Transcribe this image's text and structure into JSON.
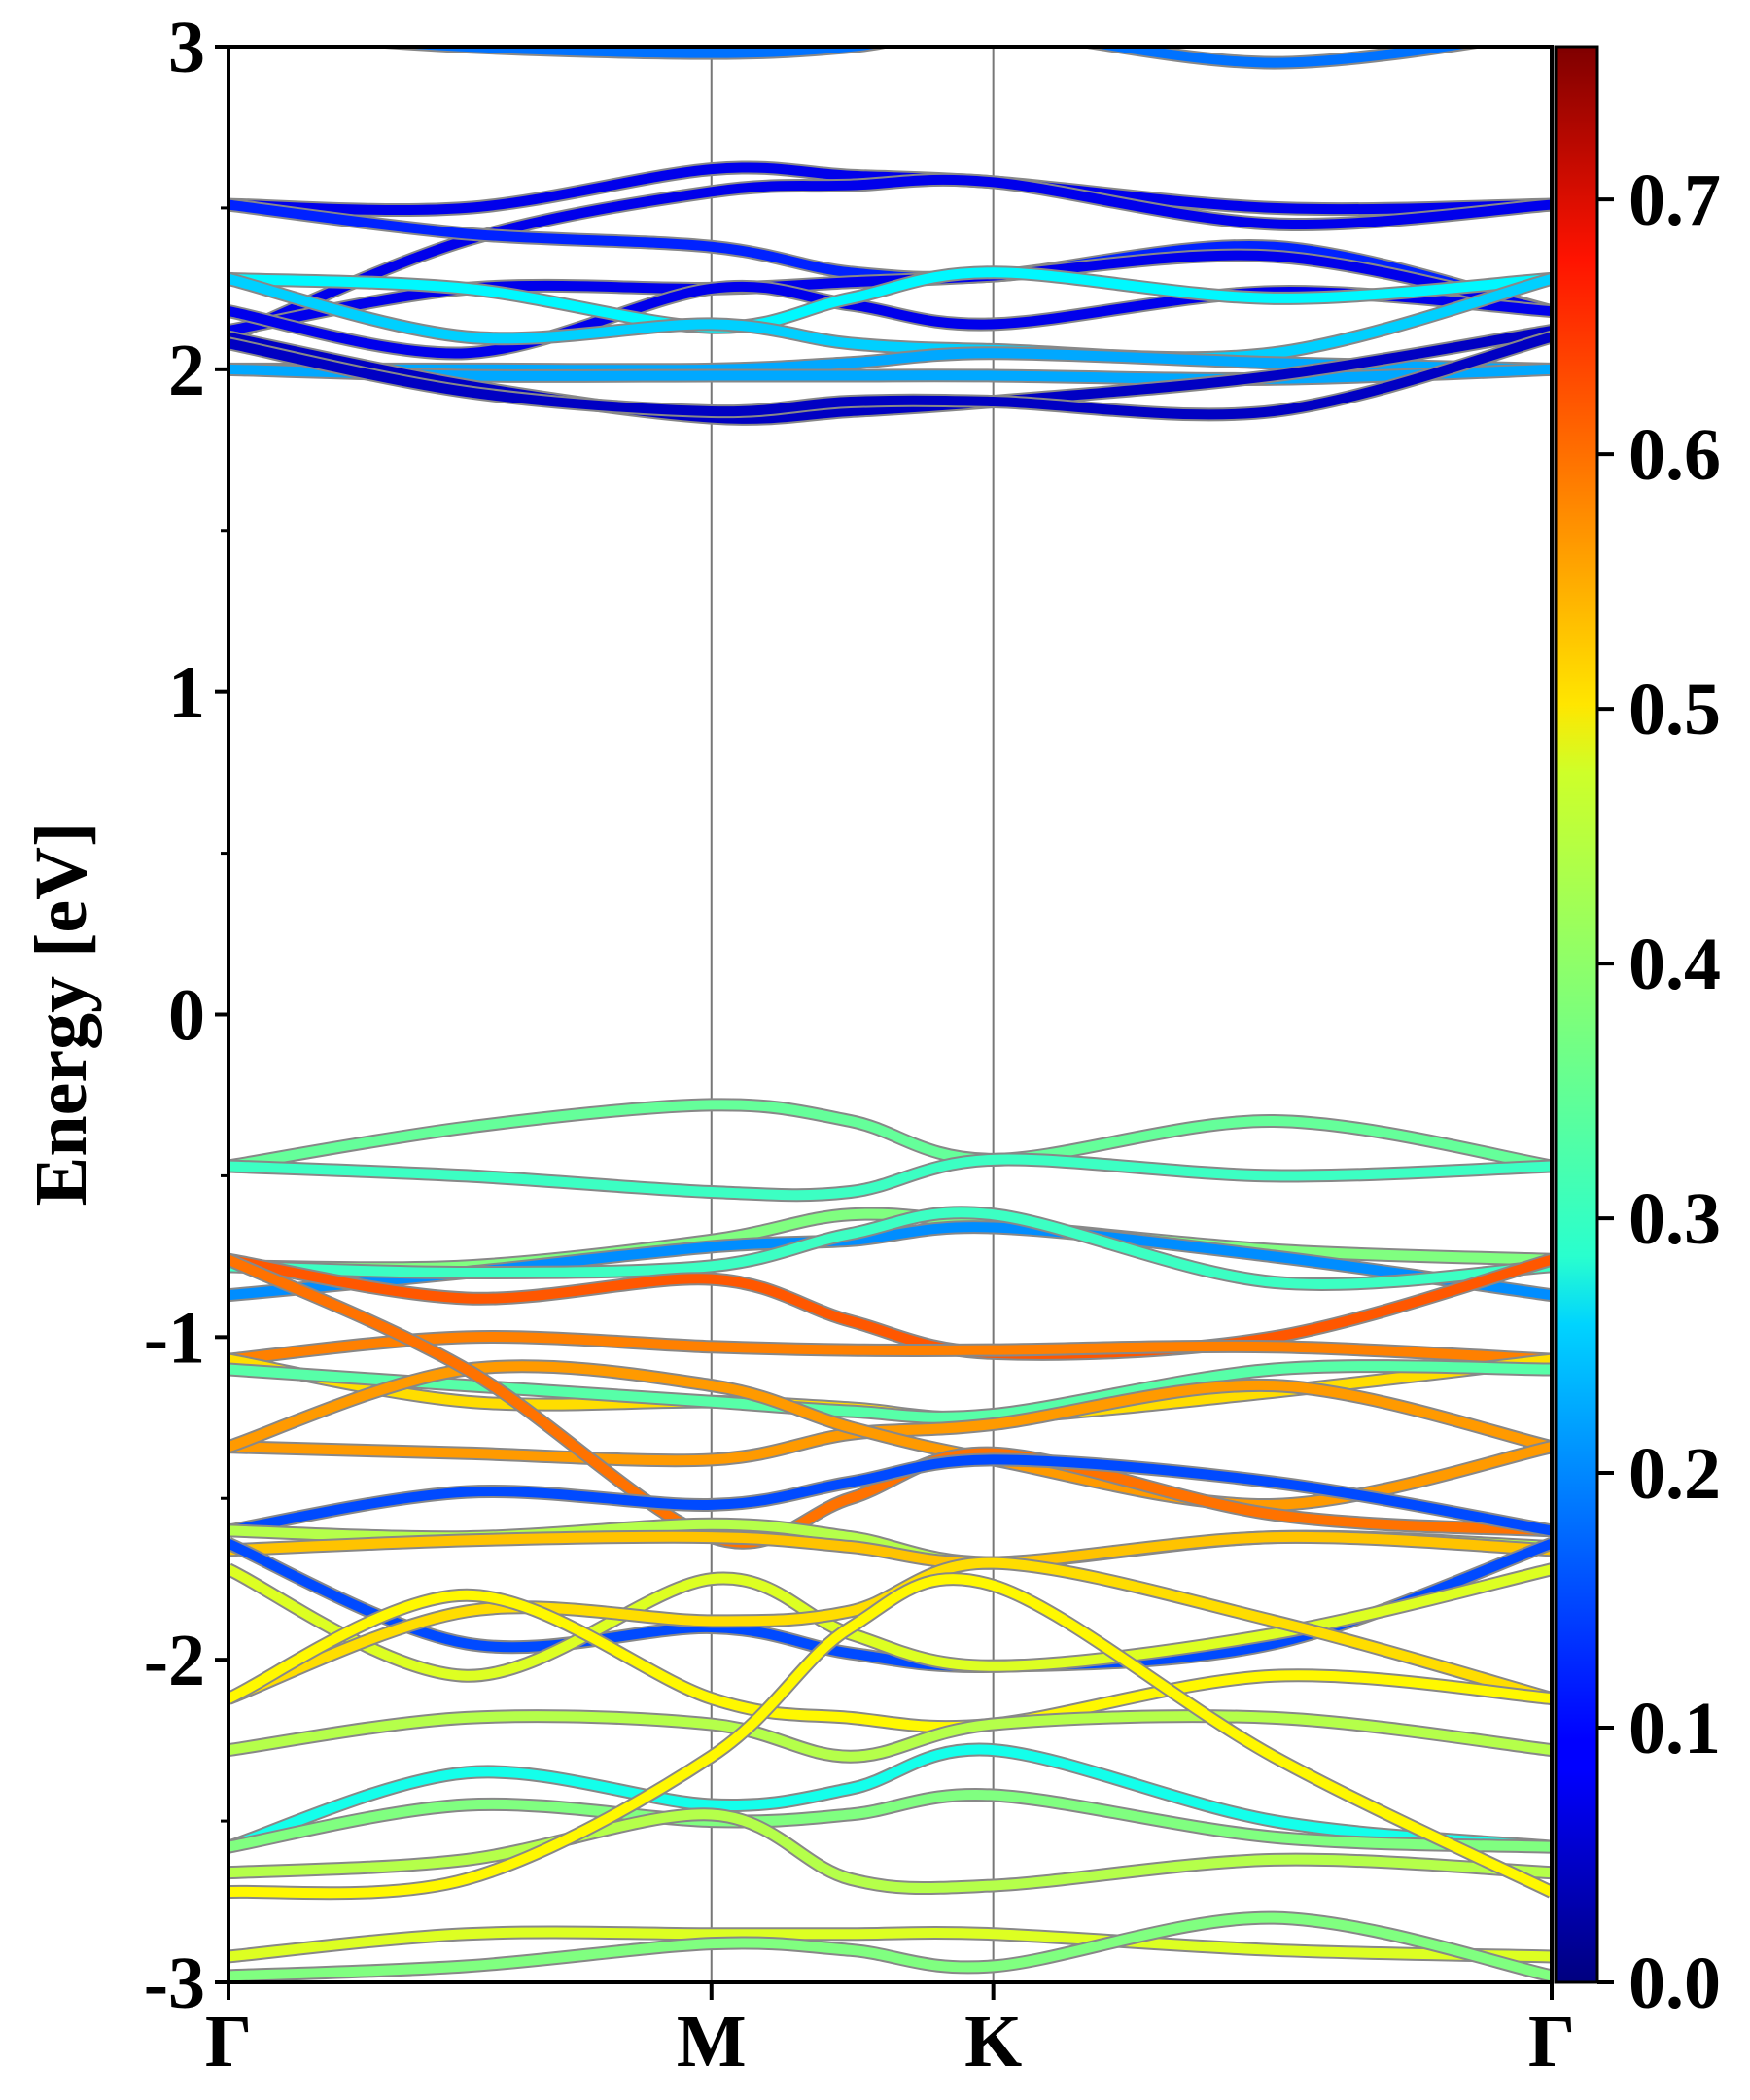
{
  "chart_data": {
    "type": "line",
    "title": "",
    "xlabel": "",
    "ylabel": "Energy [eV]",
    "ylim": [
      -3,
      3
    ],
    "yticks": [
      3,
      2,
      1,
      0,
      -1,
      -2,
      -3
    ],
    "ytick_labels": [
      "3",
      "2",
      "1",
      "0",
      "-1",
      "-2",
      "-3"
    ],
    "high_symmetry_points": [
      {
        "label": "Γ",
        "k": 0
      },
      {
        "label": "M",
        "k": 0.365
      },
      {
        "label": "K",
        "k": 0.578
      },
      {
        "label": "Γ",
        "k": 1
      }
    ],
    "k_samples": [
      0,
      0.18,
      0.365,
      0.47,
      0.578,
      0.79,
      1
    ],
    "colorbar": {
      "colormap": "jet",
      "range": [
        0,
        0.76
      ],
      "ticks": [
        0.0,
        0.1,
        0.2,
        0.3,
        0.4,
        0.5,
        0.6,
        0.7
      ],
      "tick_labels": [
        "0.0",
        "0.1",
        "0.2",
        "0.3",
        "0.4",
        "0.5",
        "0.6",
        "0.7"
      ]
    },
    "bands": [
      {
        "E": [
          3.05,
          3.0,
          2.98,
          3.0,
          3.05,
          2.95,
          3.05
        ],
        "w": 0.18
      },
      {
        "E": [
          2.51,
          2.5,
          2.62,
          2.6,
          2.58,
          2.5,
          2.51
        ],
        "w": 0.08
      },
      {
        "E": [
          2.1,
          2.4,
          2.55,
          2.57,
          2.58,
          2.45,
          2.51
        ],
        "w": 0.08
      },
      {
        "E": [
          2.51,
          2.42,
          2.38,
          2.3,
          2.29,
          2.38,
          2.18
        ],
        "w": 0.12
      },
      {
        "E": [
          2.12,
          2.25,
          2.25,
          2.27,
          2.29,
          2.35,
          2.18
        ],
        "w": 0.08
      },
      {
        "E": [
          2.18,
          2.05,
          2.25,
          2.2,
          2.14,
          2.24,
          2.18
        ],
        "w": 0.08
      },
      {
        "E": [
          2.28,
          2.25,
          2.13,
          2.22,
          2.3,
          2.22,
          2.28
        ],
        "w": 0.28
      },
      {
        "E": [
          2.28,
          2.1,
          2.14,
          2.08,
          2.06,
          2.05,
          2.28
        ],
        "w": 0.25
      },
      {
        "E": [
          2.0,
          2.0,
          2.0,
          2.02,
          2.05,
          2.02,
          2.0
        ],
        "w": 0.22
      },
      {
        "E": [
          2.0,
          1.98,
          1.98,
          1.98,
          1.98,
          1.97,
          2.0
        ],
        "w": 0.22
      },
      {
        "E": [
          2.1,
          1.95,
          1.85,
          1.87,
          1.9,
          1.98,
          2.12
        ],
        "w": 0.05
      },
      {
        "E": [
          2.08,
          1.93,
          1.87,
          1.9,
          1.9,
          1.87,
          2.1
        ],
        "w": 0.05
      },
      {
        "E": [
          -0.47,
          -0.35,
          -0.28,
          -0.33,
          -0.45,
          -0.33,
          -0.47
        ],
        "w": 0.36
      },
      {
        "E": [
          -0.47,
          -0.5,
          -0.55,
          -0.55,
          -0.45,
          -0.5,
          -0.47
        ],
        "w": 0.33
      },
      {
        "E": [
          -0.78,
          -0.78,
          -0.7,
          -0.62,
          -0.65,
          -0.73,
          -0.76
        ],
        "w": 0.38
      },
      {
        "E": [
          -0.87,
          -0.8,
          -0.72,
          -0.7,
          -0.66,
          -0.75,
          -0.87
        ],
        "w": 0.2
      },
      {
        "E": [
          -0.78,
          -0.8,
          -0.78,
          -0.68,
          -0.62,
          -0.83,
          -0.78
        ],
        "w": 0.33
      },
      {
        "E": [
          -0.76,
          -0.88,
          -0.82,
          -0.95,
          -1.05,
          -1.0,
          -0.76
        ],
        "w": 0.6
      },
      {
        "E": [
          -1.07,
          -1.0,
          -1.03,
          -1.04,
          -1.04,
          -1.03,
          -1.07
        ],
        "w": 0.57
      },
      {
        "E": [
          -1.07,
          -1.2,
          -1.2,
          -1.22,
          -1.25,
          -1.17,
          -1.07
        ],
        "w": 0.5
      },
      {
        "E": [
          -1.1,
          -1.15,
          -1.2,
          -1.23,
          -1.24,
          -1.1,
          -1.1
        ],
        "w": 0.35
      },
      {
        "E": [
          -1.34,
          -1.36,
          -1.38,
          -1.3,
          -1.27,
          -1.15,
          -1.34
        ],
        "w": 0.55
      },
      {
        "E": [
          -1.34,
          -1.1,
          -1.15,
          -1.28,
          -1.38,
          -1.52,
          -1.34
        ],
        "w": 0.55
      },
      {
        "E": [
          -0.76,
          -1.1,
          -1.62,
          -1.5,
          -1.36,
          -1.55,
          -1.6
        ],
        "w": 0.58
      },
      {
        "E": [
          -1.6,
          -1.48,
          -1.52,
          -1.45,
          -1.38,
          -1.45,
          -1.6
        ],
        "w": 0.15
      },
      {
        "E": [
          -1.6,
          -1.62,
          -1.58,
          -1.62,
          -1.7,
          -1.62,
          -1.65
        ],
        "w": 0.42
      },
      {
        "E": [
          -1.66,
          -1.63,
          -1.62,
          -1.65,
          -1.7,
          -1.62,
          -1.66
        ],
        "w": 0.52
      },
      {
        "E": [
          -1.64,
          -1.95,
          -1.9,
          -1.98,
          -2.02,
          -1.95,
          -1.64
        ],
        "w": 0.15
      },
      {
        "E": [
          -1.72,
          -2.05,
          -1.75,
          -1.92,
          -2.02,
          -1.92,
          -1.72
        ],
        "w": 0.45
      },
      {
        "E": [
          -2.12,
          -1.85,
          -1.88,
          -1.85,
          -1.7,
          -1.88,
          -2.12
        ],
        "w": 0.5
      },
      {
        "E": [
          -2.12,
          -1.8,
          -2.12,
          -2.18,
          -2.2,
          -2.05,
          -2.12
        ],
        "w": 0.48
      },
      {
        "E": [
          -2.28,
          -2.18,
          -2.2,
          -2.3,
          -2.2,
          -2.18,
          -2.28
        ],
        "w": 0.42
      },
      {
        "E": [
          -2.58,
          -2.35,
          -2.45,
          -2.4,
          -2.28,
          -2.5,
          -2.58
        ],
        "w": 0.3
      },
      {
        "E": [
          -2.58,
          -2.45,
          -2.5,
          -2.48,
          -2.42,
          -2.55,
          -2.58
        ],
        "w": 0.38
      },
      {
        "E": [
          -2.66,
          -2.62,
          -2.48,
          -2.68,
          -2.7,
          -2.62,
          -2.66
        ],
        "w": 0.42
      },
      {
        "E": [
          -2.72,
          -2.68,
          -2.3,
          -1.9,
          -1.77,
          -2.3,
          -2.72
        ],
        "w": 0.48
      },
      {
        "E": [
          -2.92,
          -2.85,
          -2.85,
          -2.85,
          -2.85,
          -2.9,
          -2.92
        ],
        "w": 0.45
      },
      {
        "E": [
          -2.98,
          -2.95,
          -2.88,
          -2.9,
          -2.95,
          -2.8,
          -2.98
        ],
        "w": 0.38
      }
    ]
  }
}
